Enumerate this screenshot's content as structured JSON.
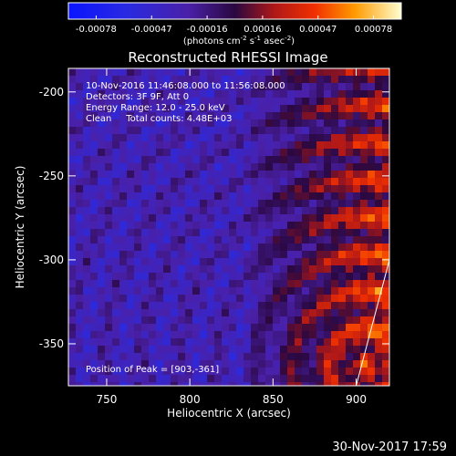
{
  "chart_data": {
    "type": "heatmap",
    "title": "Reconstructed RHESSI Image",
    "xlabel": "Heliocentric X (arcsec)",
    "ylabel": "Heliocentric Y (arcsec)",
    "xlim": [
      727,
      920
    ],
    "ylim": [
      -375,
      -186
    ],
    "x_ticks": [
      750,
      800,
      850,
      900
    ],
    "y_ticks": [
      -200,
      -250,
      -300,
      -350
    ],
    "colorbar": {
      "ticks": [
        "-0.00078",
        "-0.00047",
        "-0.00016",
        "0.00016",
        "0.00047",
        "0.00078"
      ],
      "range": [
        -0.00078,
        0.00078
      ],
      "unit_text": "(photons cm",
      "unit_sup1": "-2",
      "unit_mid": " s",
      "unit_sup2": "-1",
      "unit_mid2": " asec",
      "unit_sup3": "-2",
      "unit_end": ")"
    },
    "annotations": [
      "10-Nov-2016 11:46:08.000 to 11:56:08.000",
      "Detectors: 3F 9F, Att 0",
      "Energy Range: 12.0 - 25.0 keV",
      "Clean     Total counts: 4.48E+03"
    ],
    "peak_label": "Position of Peak = [903,-361]",
    "peak": [
      903,
      -361
    ],
    "limb_line": [
      [
        900,
        -375
      ],
      [
        920,
        -300
      ]
    ]
  },
  "footer": {
    "timestamp": "30-Nov-2017 17:59"
  }
}
